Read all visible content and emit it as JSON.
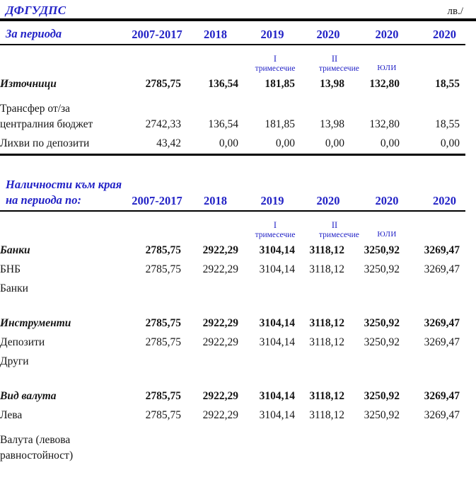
{
  "page": {
    "title": "ДФГУДПС",
    "unit": "лв./"
  },
  "section1": {
    "label": "За периода",
    "years": [
      "2007-2017",
      "2018",
      "2019",
      "2020",
      "2020",
      "2020"
    ],
    "sub": {
      "q1_top": "I",
      "q1_bottom": "тримесечие",
      "q2_top": "II",
      "q2_bottom": "тримесечие",
      "july": "ЮЛИ"
    },
    "rows": [
      {
        "label": "Източници",
        "values": [
          "2785,75",
          "136,54",
          "181,85",
          "13,98",
          "132,80",
          "18,55"
        ]
      },
      {
        "label": "Трансфер от/за централния бюджет",
        "values": [
          "2742,33",
          "136,54",
          "181,85",
          "13,98",
          "132,80",
          "18,55"
        ]
      },
      {
        "label": "Лихви по депозити",
        "values": [
          "43,42",
          "0,00",
          "0,00",
          "0,00",
          "0,00",
          "0,00"
        ]
      }
    ]
  },
  "section2": {
    "label": "Наличности към края на периода по:",
    "years": [
      "2007-2017",
      "2018",
      "2019",
      "2020",
      "2020",
      "2020"
    ],
    "sub": {
      "q1_top": "I",
      "q1_bottom": "тримесечие",
      "q2_top": "II",
      "q2_bottom": "тримесечие",
      "july": "ЮЛИ"
    },
    "rows": [
      {
        "label": "Банки",
        "values": [
          "2785,75",
          "2922,29",
          "3104,14",
          "3118,12",
          "3250,92",
          "3269,47"
        ]
      },
      {
        "label": "БНБ",
        "values": [
          "2785,75",
          "2922,29",
          "3104,14",
          "3118,12",
          "3250,92",
          "3269,47"
        ]
      },
      {
        "label": "Банки",
        "values": [
          "",
          "",
          "",
          "",
          "",
          ""
        ]
      },
      {
        "label": "Инструменти",
        "values": [
          "2785,75",
          "2922,29",
          "3104,14",
          "3118,12",
          "3250,92",
          "3269,47"
        ]
      },
      {
        "label": "Депозити",
        "values": [
          "2785,75",
          "2922,29",
          "3104,14",
          "3118,12",
          "3250,92",
          "3269,47"
        ]
      },
      {
        "label": "Други",
        "values": [
          "",
          "",
          "",
          "",
          "",
          ""
        ]
      },
      {
        "label": "Вид валута",
        "values": [
          "2785,75",
          "2922,29",
          "3104,14",
          "3118,12",
          "3250,92",
          "3269,47"
        ]
      },
      {
        "label": "Лева",
        "values": [
          "2785,75",
          "2922,29",
          "3104,14",
          "3118,12",
          "3250,92",
          "3269,47"
        ]
      },
      {
        "label": "Валута (левова равностойност)",
        "values": [
          "",
          "",
          "",
          "",
          "",
          ""
        ]
      }
    ]
  }
}
